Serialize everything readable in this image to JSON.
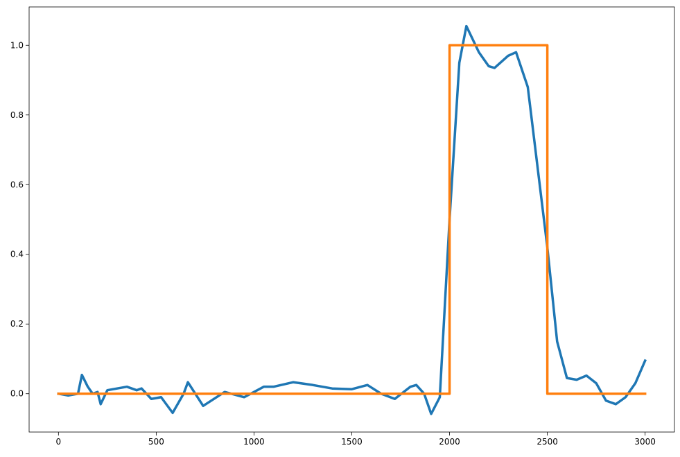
{
  "chart_data": {
    "type": "line",
    "series": [
      {
        "color": "#1f77b4",
        "x": [
          0,
          50,
          100,
          120,
          150,
          175,
          200,
          216,
          250,
          300,
          350,
          400,
          425,
          475,
          525,
          584,
          640,
          662,
          740,
          850,
          950,
          1050,
          1100,
          1200,
          1300,
          1400,
          1500,
          1580,
          1650,
          1720,
          1800,
          1830,
          1870,
          1906,
          1950,
          2000,
          2050,
          2086,
          2150,
          2200,
          2230,
          2300,
          2340,
          2400,
          2450,
          2500,
          2550,
          2600,
          2650,
          2700,
          2750,
          2800,
          2850,
          2900,
          2950,
          3000
        ],
        "values": [
          0.0,
          -0.005,
          0.0,
          0.054,
          0.02,
          0.0,
          0.005,
          -0.03,
          0.01,
          0.015,
          0.02,
          0.01,
          0.015,
          -0.015,
          -0.01,
          -0.055,
          0.0,
          0.033,
          -0.035,
          0.005,
          -0.01,
          0.02,
          0.02,
          0.033,
          0.025,
          0.015,
          0.013,
          0.025,
          0.0,
          -0.015,
          0.02,
          0.025,
          0.0,
          -0.058,
          -0.01,
          0.5,
          0.95,
          1.055,
          0.98,
          0.94,
          0.935,
          0.97,
          0.98,
          0.88,
          0.65,
          0.42,
          0.15,
          0.045,
          0.04,
          0.052,
          0.03,
          -0.02,
          -0.03,
          -0.01,
          0.03,
          0.095
        ]
      },
      {
        "color": "#ff7f0e",
        "x": [
          0,
          2000,
          2000,
          2500,
          2500,
          3000
        ],
        "values": [
          0,
          0,
          1,
          1,
          0,
          0
        ]
      }
    ],
    "xlim": [
      -150,
      3150
    ],
    "ylim": [
      -0.11,
      1.11
    ],
    "xticks": [
      0,
      500,
      1000,
      1500,
      2000,
      2500,
      3000
    ],
    "yticks": [
      {
        "value": 0,
        "label": "0.0"
      },
      0.2,
      0.4,
      0.6,
      0.8,
      {
        "value": 1,
        "label": "1.0"
      }
    ],
    "grid": false
  }
}
